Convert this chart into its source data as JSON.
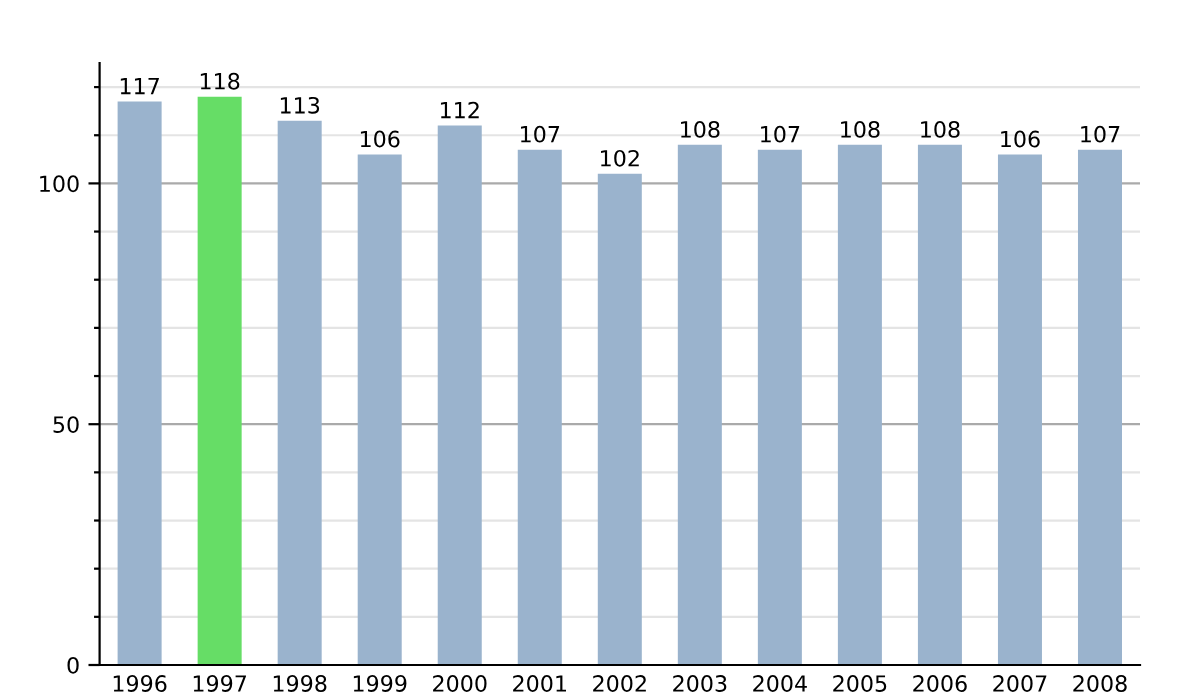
{
  "chart_data": {
    "type": "bar",
    "categories": [
      "1996",
      "1997",
      "1998",
      "1999",
      "2000",
      "2001",
      "2002",
      "2003",
      "2004",
      "2005",
      "2006",
      "2007",
      "2008"
    ],
    "values": [
      117,
      118,
      113,
      106,
      112,
      107,
      102,
      108,
      107,
      108,
      108,
      106,
      107
    ],
    "colors": [
      "#9ab3cd",
      "#66dd66",
      "#9ab3cd",
      "#9ab3cd",
      "#9ab3cd",
      "#9ab3cd",
      "#9ab3cd",
      "#9ab3cd",
      "#9ab3cd",
      "#9ab3cd",
      "#9ab3cd",
      "#9ab3cd",
      "#9ab3cd"
    ],
    "ylim": [
      0,
      125
    ],
    "yticks": [
      0,
      {
        "value": 10,
        "label": null
      },
      {
        "value": 20,
        "label": null
      },
      {
        "value": 30,
        "label": null
      },
      {
        "value": 40,
        "label": null
      },
      50,
      {
        "value": 60,
        "label": null
      },
      {
        "value": 70,
        "label": null
      },
      {
        "value": 80,
        "label": null
      },
      {
        "value": 90,
        "label": null
      },
      100,
      {
        "value": 110,
        "label": null
      },
      {
        "value": 120,
        "label": null
      }
    ],
    "grid": "y",
    "data_labels": true
  }
}
